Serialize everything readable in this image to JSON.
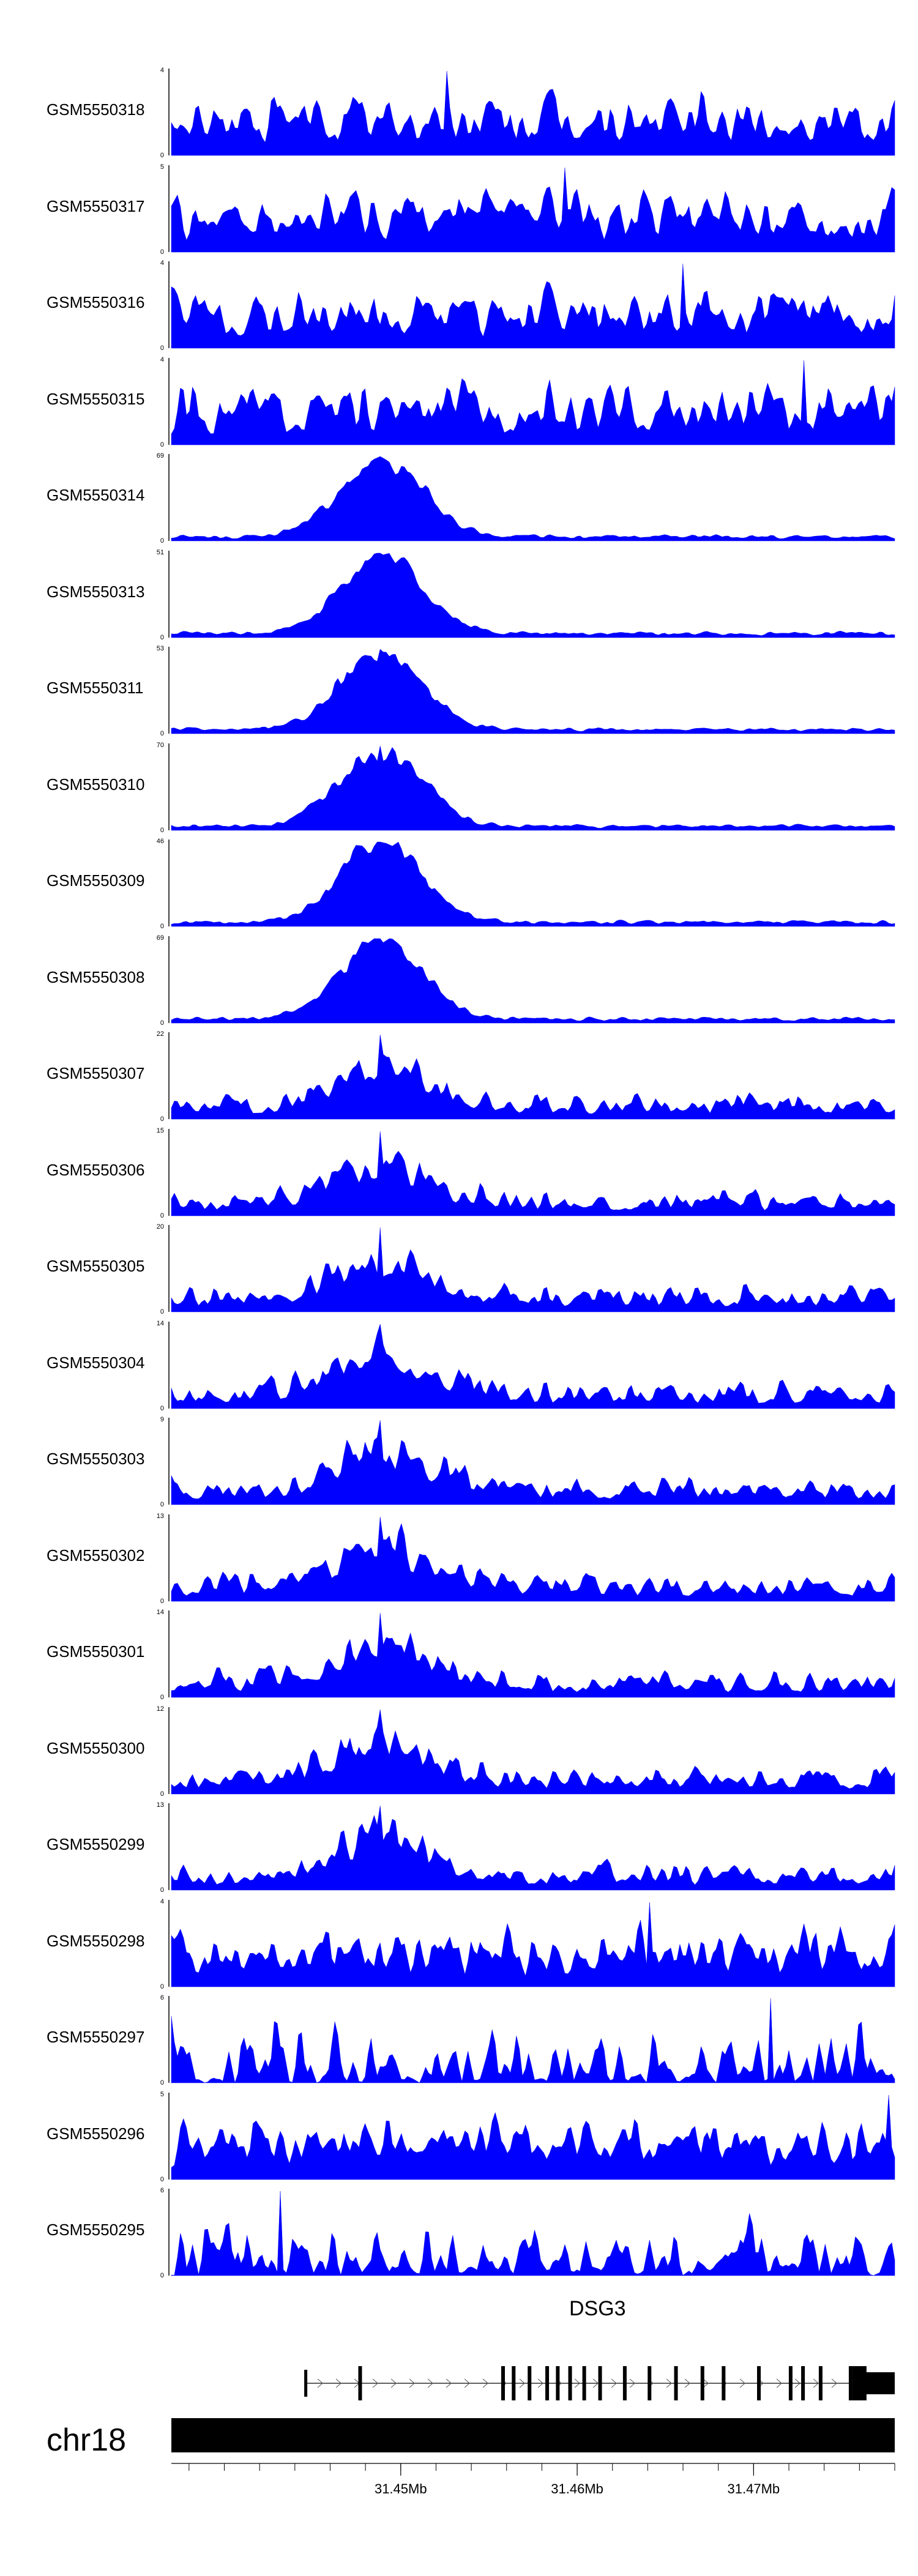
{
  "chart_data": {
    "type": "area",
    "color": "#0000ff",
    "x_range_bp": [
      31437000,
      31478000
    ],
    "series": [
      {
        "name": "GSM5550318",
        "ymax_label": "4",
        "ymax": 4,
        "profile": "flat",
        "seed": 318
      },
      {
        "name": "GSM5550317",
        "ymax_label": "5",
        "ymax": 5,
        "profile": "flat",
        "seed": 317
      },
      {
        "name": "GSM5550316",
        "ymax_label": "4",
        "ymax": 4,
        "profile": "flat",
        "seed": 316
      },
      {
        "name": "GSM5550315",
        "ymax_label": "4",
        "ymax": 4,
        "profile": "flat",
        "seed": 315
      },
      {
        "name": "GSM5550314",
        "ymax_label": "69",
        "ymax": 69,
        "profile": "peak",
        "seed": 314
      },
      {
        "name": "GSM5550313",
        "ymax_label": "51",
        "ymax": 51,
        "profile": "peak",
        "seed": 313
      },
      {
        "name": "GSM5550311",
        "ymax_label": "53",
        "ymax": 53,
        "profile": "peak",
        "seed": 311
      },
      {
        "name": "GSM5550310",
        "ymax_label": "70",
        "ymax": 70,
        "profile": "peak",
        "seed": 310
      },
      {
        "name": "GSM5550309",
        "ymax_label": "46",
        "ymax": 46,
        "profile": "peak",
        "seed": 309
      },
      {
        "name": "GSM5550308",
        "ymax_label": "69",
        "ymax": 69,
        "profile": "peak",
        "seed": 308
      },
      {
        "name": "GSM5550307",
        "ymax_label": "22",
        "ymax": 22,
        "profile": "medium",
        "seed": 307
      },
      {
        "name": "GSM5550306",
        "ymax_label": "15",
        "ymax": 15,
        "profile": "medium",
        "seed": 306
      },
      {
        "name": "GSM5550305",
        "ymax_label": "20",
        "ymax": 20,
        "profile": "medium",
        "seed": 305
      },
      {
        "name": "GSM5550304",
        "ymax_label": "14",
        "ymax": 14,
        "profile": "medium",
        "seed": 304
      },
      {
        "name": "GSM5550303",
        "ymax_label": "9",
        "ymax": 9,
        "profile": "medium",
        "seed": 303
      },
      {
        "name": "GSM5550302",
        "ymax_label": "13",
        "ymax": 13,
        "profile": "medium",
        "seed": 302
      },
      {
        "name": "GSM5550301",
        "ymax_label": "14",
        "ymax": 14,
        "profile": "medium",
        "seed": 301
      },
      {
        "name": "GSM5550300",
        "ymax_label": "12",
        "ymax": 12,
        "profile": "medium",
        "seed": 300
      },
      {
        "name": "GSM5550299",
        "ymax_label": "13",
        "ymax": 13,
        "profile": "medium",
        "seed": 299
      },
      {
        "name": "GSM5550298",
        "ymax_label": "4",
        "ymax": 4,
        "profile": "flat",
        "seed": 298
      },
      {
        "name": "GSM5550297",
        "ymax_label": "6",
        "ymax": 6,
        "profile": "spiky",
        "seed": 297
      },
      {
        "name": "GSM5550296",
        "ymax_label": "5",
        "ymax": 5,
        "profile": "flat",
        "seed": 296
      },
      {
        "name": "GSM5550295",
        "ymax_label": "6",
        "ymax": 6,
        "profile": "spiky",
        "seed": 295
      }
    ],
    "baseline_label": "0",
    "gene": {
      "name": "DSG3",
      "start_bp": 31444600,
      "end_bp": 31478000,
      "exons_bp": [
        31447700,
        31455800,
        31456400,
        31457300,
        31458300,
        31458900,
        31459600,
        31460400,
        31461300,
        31462700,
        31464100,
        31465600,
        31467100,
        31468300,
        31470300,
        31472100,
        31472800,
        31473800,
        31475500
      ]
    },
    "chromosome": "chr18",
    "x_ticks": [
      "31.45Mb",
      "31.46Mb",
      "31.47Mb"
    ],
    "x_tick_values_bp": [
      31450000,
      31460000,
      31470000
    ]
  }
}
